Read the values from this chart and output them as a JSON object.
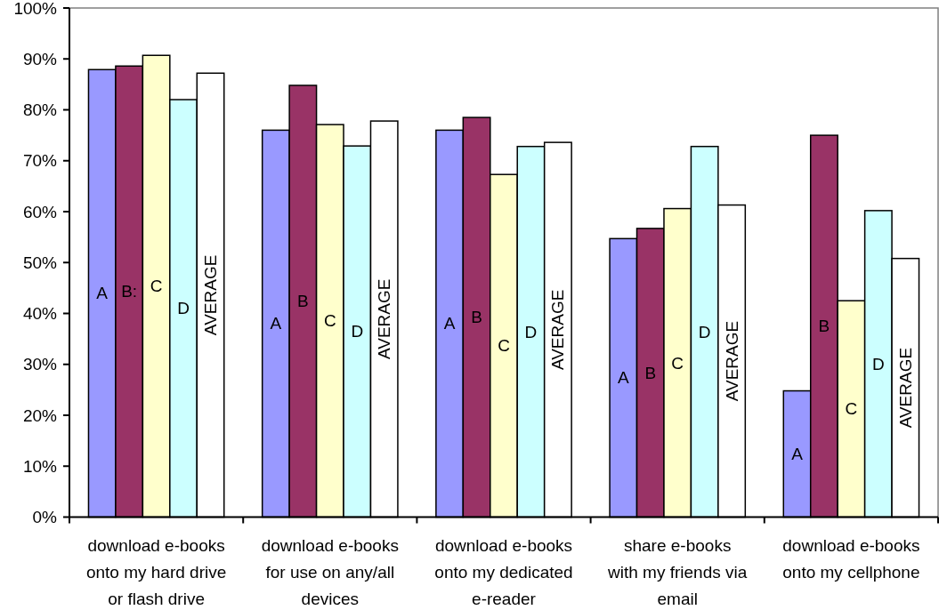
{
  "chart_data": {
    "type": "bar",
    "categories": [
      "download e-books\nonto my hard drive\nor flash drive",
      "download e-books\nfor use on any/all\ndevices",
      "download e-books\nonto my dedicated\ne-reader",
      "share e-books\nwith my friends via\nemail",
      "download e-books\nonto my cellphone"
    ],
    "series": [
      {
        "color": "#9999ff",
        "values": [
          87.9,
          76.0,
          76.0,
          54.7,
          24.8
        ],
        "value_labels": [
          "A",
          "A",
          "A",
          "A",
          "A"
        ]
      },
      {
        "color": "#993366",
        "values": [
          88.6,
          84.8,
          78.5,
          56.7,
          75.0
        ],
        "value_labels": [
          "B:",
          "B",
          "B",
          "B",
          "B"
        ]
      },
      {
        "color": "#ffffcc",
        "values": [
          90.7,
          77.1,
          67.3,
          60.6,
          42.5
        ],
        "value_labels": [
          "C",
          "C",
          "C",
          "C",
          "C"
        ]
      },
      {
        "color": "#ccffff",
        "values": [
          82.0,
          72.9,
          72.8,
          72.8,
          60.2
        ],
        "value_labels": [
          "D",
          "D",
          "D",
          "D",
          "D"
        ]
      },
      {
        "color": "#ffffff",
        "values": [
          87.2,
          77.8,
          73.6,
          61.3,
          50.8
        ],
        "value_labels": [
          "AVERAGE",
          "AVERAGE",
          "AVERAGE",
          "AVERAGE",
          "AVERAGE"
        ]
      }
    ],
    "ylim": [
      0,
      100
    ],
    "yticks": [
      {
        "value": 0,
        "label": "0%"
      },
      {
        "value": 10,
        "label": "10%"
      },
      {
        "value": 20,
        "label": "20%"
      },
      {
        "value": 30,
        "label": "30%"
      },
      {
        "value": 40,
        "label": "40%"
      },
      {
        "value": 50,
        "label": "50%"
      },
      {
        "value": 60,
        "label": "60%"
      },
      {
        "value": 70,
        "label": "70%"
      },
      {
        "value": 80,
        "label": "80%"
      },
      {
        "value": 90,
        "label": "90%"
      },
      {
        "value": 100,
        "label": "100%"
      }
    ]
  }
}
